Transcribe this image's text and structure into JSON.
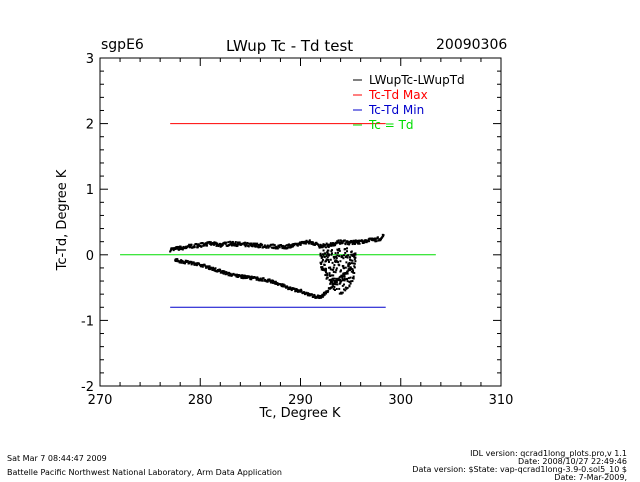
{
  "header": {
    "site": "sgpE6",
    "title": "LWup Tc - Td test",
    "date": "20090306"
  },
  "footer": {
    "timestamp": "Sat Mar  7 08:44:47 2009",
    "lab": "Battelle Pacific Northwest National Laboratory, Arm Data Application",
    "idl_version": "IDL version: qcrad1long_plots.pro,v 1.1",
    "idl_date": "Date: 2008/10/27 22:49:46",
    "data_version": "Data version: $State: vap-qcrad1long-3.9-0.sol5_10 $",
    "data_date": "Date: 7-Mar-2009,"
  },
  "chart_data": {
    "type": "scatter",
    "title": "LWup Tc - Td test",
    "xlabel": "Tc, Degree K",
    "ylabel": "Tc-Td, Degree K",
    "xlim": [
      270,
      310
    ],
    "ylim": [
      -2,
      3
    ],
    "xticks": [
      "270",
      "280",
      "290",
      "300",
      "310"
    ],
    "yticks": [
      "-2",
      "-1",
      "0",
      "1",
      "2",
      "3"
    ],
    "grid": false,
    "legend_position": "top-right",
    "series": [
      {
        "name": "LWupTc-LWupTd",
        "color": "#000000",
        "style": "points",
        "upper_band": {
          "x": [
            277,
            278,
            279,
            280,
            281,
            282,
            283,
            284,
            285,
            286,
            287,
            288,
            289,
            290,
            291,
            292,
            293,
            294,
            295,
            296,
            297,
            298,
            298.3
          ],
          "y": [
            0.08,
            0.1,
            0.13,
            0.15,
            0.17,
            0.15,
            0.17,
            0.16,
            0.15,
            0.14,
            0.13,
            0.12,
            0.13,
            0.17,
            0.2,
            0.13,
            0.15,
            0.2,
            0.18,
            0.2,
            0.22,
            0.25,
            0.3
          ]
        },
        "lower_band": {
          "x": [
            277.5,
            278,
            279,
            280,
            281,
            282,
            283,
            284,
            285,
            286,
            287,
            288,
            289,
            290,
            291,
            292,
            293,
            294,
            295
          ],
          "y": [
            -0.07,
            -0.1,
            -0.12,
            -0.15,
            -0.2,
            -0.25,
            -0.3,
            -0.33,
            -0.35,
            -0.37,
            -0.4,
            -0.45,
            -0.52,
            -0.55,
            -0.62,
            -0.65,
            -0.5,
            -0.35,
            -0.2
          ]
        },
        "spread_cluster": {
          "x": [
            292,
            293,
            294,
            294.5,
            295,
            295.5
          ],
          "y_min": [
            -0.2,
            -0.5,
            -0.6,
            -0.7,
            -0.55,
            -0.3
          ],
          "y_max": [
            0.1,
            0.08,
            0.1,
            0.12,
            0.1,
            0.05
          ]
        }
      },
      {
        "name": "Tc-Td Max",
        "color": "#ff0000",
        "style": "line",
        "x": [
          277,
          298.5
        ],
        "y": [
          2.0,
          2.0
        ]
      },
      {
        "name": "Tc-Td Min",
        "color": "#0000cc",
        "style": "line",
        "x": [
          277,
          298.5
        ],
        "y": [
          -0.8,
          -0.8
        ]
      },
      {
        "name": "Tc = Td",
        "color": "#00dd00",
        "style": "line",
        "x": [
          272,
          303.5
        ],
        "y": [
          0.0,
          0.0
        ]
      }
    ]
  }
}
